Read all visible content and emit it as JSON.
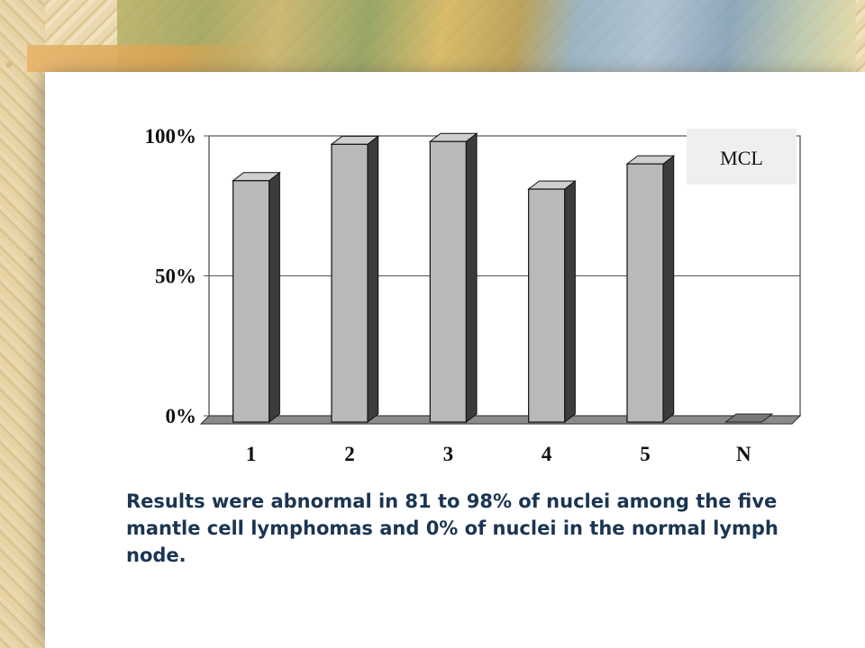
{
  "chart_data": {
    "type": "bar",
    "categories": [
      "1",
      "2",
      "3",
      "4",
      "5",
      "N"
    ],
    "values": [
      84,
      97,
      98,
      81,
      90,
      0
    ],
    "y_ticks": [
      "0%",
      "50%",
      "100%"
    ],
    "ylim": [
      0,
      100
    ],
    "legend": "MCL",
    "legend_position": "top-right",
    "grid": true,
    "bar_color": "#b9b9b9",
    "bar_side_color": "#3c3c3c"
  },
  "caption": "Results were abnormal in 81 to 98% of nuclei among the five mantle cell lymphomas and 0% of nuclei in the normal lymph node."
}
